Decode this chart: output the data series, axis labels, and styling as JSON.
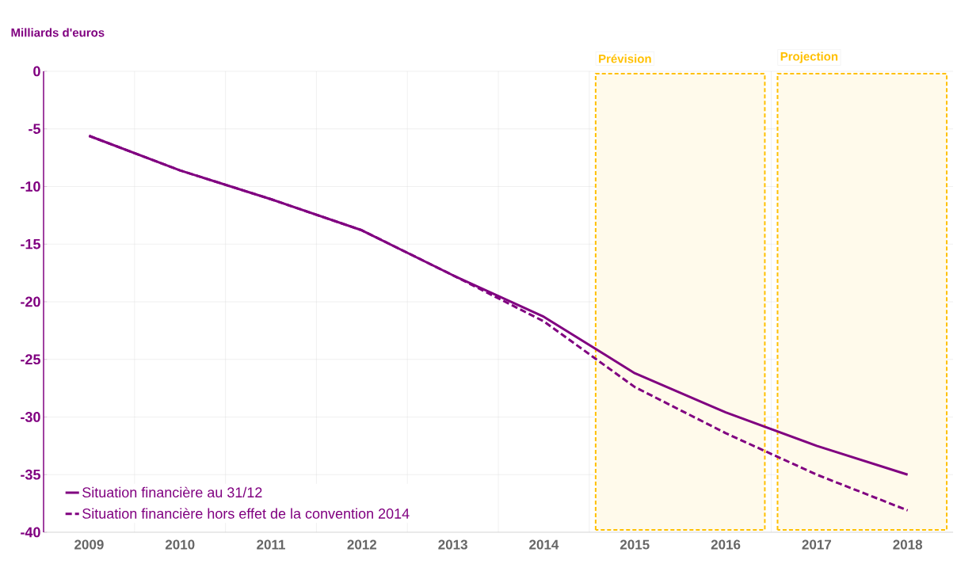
{
  "chart_data": {
    "type": "line",
    "ylabel": "Milliards d'euros",
    "categories": [
      "2009",
      "2010",
      "2011",
      "2012",
      "2013",
      "2014",
      "2015",
      "2016",
      "2017",
      "2018"
    ],
    "series": [
      {
        "name": "Situation financière au 31/12",
        "color": "#800080",
        "line_style": "solid",
        "values": [
          -5.6,
          -8.6,
          -11.1,
          -13.8,
          -17.7,
          -21.3,
          -26.2,
          -29.6,
          -32.5,
          -35.0
        ]
      },
      {
        "name": "Situation financière hors effet de la convention 2014",
        "color": "#800080",
        "line_style": "dashed",
        "values": [
          -5.6,
          -8.6,
          -11.1,
          -13.8,
          -17.7,
          -21.7,
          -27.4,
          -31.4,
          -35.0,
          -38.1
        ]
      }
    ],
    "ylim": [
      -40,
      0
    ],
    "yticks": [
      0,
      -5,
      -10,
      -15,
      -20,
      -25,
      -30,
      -35,
      -40
    ],
    "bands": [
      {
        "axis": "x",
        "from": "2015",
        "to": "2016",
        "label": "Prévision",
        "color": "#ffc000"
      },
      {
        "axis": "x",
        "from": "2017",
        "to": "2018",
        "label": "Projection",
        "color": "#ffc000"
      }
    ],
    "grid": true,
    "legend": "bottom left",
    "marker": "none"
  }
}
